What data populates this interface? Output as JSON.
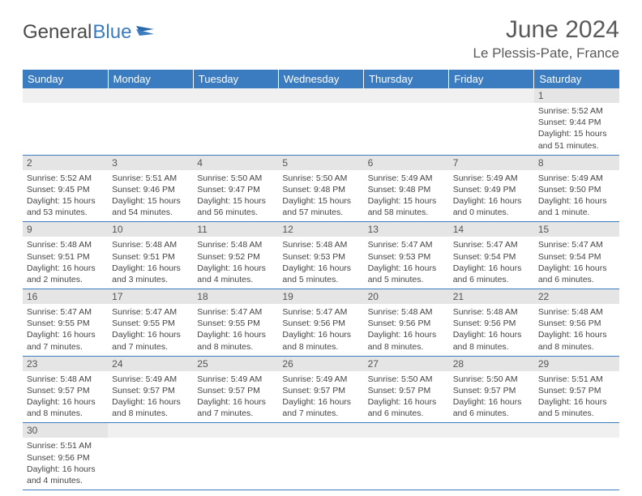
{
  "logo": {
    "text1": "General",
    "text2": "Blue"
  },
  "title": "June 2024",
  "location": "Le Plessis-Pate, France",
  "header_bg": "#3b7bbf",
  "daynum_bg": "#e5e5e5",
  "border_color": "#3b7bbf",
  "day_names": [
    "Sunday",
    "Monday",
    "Tuesday",
    "Wednesday",
    "Thursday",
    "Friday",
    "Saturday"
  ],
  "weeks": [
    [
      null,
      null,
      null,
      null,
      null,
      null,
      {
        "n": "1",
        "sunrise": "5:52 AM",
        "sunset": "9:44 PM",
        "daylight": "15 hours and 51 minutes."
      }
    ],
    [
      {
        "n": "2",
        "sunrise": "5:52 AM",
        "sunset": "9:45 PM",
        "daylight": "15 hours and 53 minutes."
      },
      {
        "n": "3",
        "sunrise": "5:51 AM",
        "sunset": "9:46 PM",
        "daylight": "15 hours and 54 minutes."
      },
      {
        "n": "4",
        "sunrise": "5:50 AM",
        "sunset": "9:47 PM",
        "daylight": "15 hours and 56 minutes."
      },
      {
        "n": "5",
        "sunrise": "5:50 AM",
        "sunset": "9:48 PM",
        "daylight": "15 hours and 57 minutes."
      },
      {
        "n": "6",
        "sunrise": "5:49 AM",
        "sunset": "9:48 PM",
        "daylight": "15 hours and 58 minutes."
      },
      {
        "n": "7",
        "sunrise": "5:49 AM",
        "sunset": "9:49 PM",
        "daylight": "16 hours and 0 minutes."
      },
      {
        "n": "8",
        "sunrise": "5:49 AM",
        "sunset": "9:50 PM",
        "daylight": "16 hours and 1 minute."
      }
    ],
    [
      {
        "n": "9",
        "sunrise": "5:48 AM",
        "sunset": "9:51 PM",
        "daylight": "16 hours and 2 minutes."
      },
      {
        "n": "10",
        "sunrise": "5:48 AM",
        "sunset": "9:51 PM",
        "daylight": "16 hours and 3 minutes."
      },
      {
        "n": "11",
        "sunrise": "5:48 AM",
        "sunset": "9:52 PM",
        "daylight": "16 hours and 4 minutes."
      },
      {
        "n": "12",
        "sunrise": "5:48 AM",
        "sunset": "9:53 PM",
        "daylight": "16 hours and 5 minutes."
      },
      {
        "n": "13",
        "sunrise": "5:47 AM",
        "sunset": "9:53 PM",
        "daylight": "16 hours and 5 minutes."
      },
      {
        "n": "14",
        "sunrise": "5:47 AM",
        "sunset": "9:54 PM",
        "daylight": "16 hours and 6 minutes."
      },
      {
        "n": "15",
        "sunrise": "5:47 AM",
        "sunset": "9:54 PM",
        "daylight": "16 hours and 6 minutes."
      }
    ],
    [
      {
        "n": "16",
        "sunrise": "5:47 AM",
        "sunset": "9:55 PM",
        "daylight": "16 hours and 7 minutes."
      },
      {
        "n": "17",
        "sunrise": "5:47 AM",
        "sunset": "9:55 PM",
        "daylight": "16 hours and 7 minutes."
      },
      {
        "n": "18",
        "sunrise": "5:47 AM",
        "sunset": "9:55 PM",
        "daylight": "16 hours and 8 minutes."
      },
      {
        "n": "19",
        "sunrise": "5:47 AM",
        "sunset": "9:56 PM",
        "daylight": "16 hours and 8 minutes."
      },
      {
        "n": "20",
        "sunrise": "5:48 AM",
        "sunset": "9:56 PM",
        "daylight": "16 hours and 8 minutes."
      },
      {
        "n": "21",
        "sunrise": "5:48 AM",
        "sunset": "9:56 PM",
        "daylight": "16 hours and 8 minutes."
      },
      {
        "n": "22",
        "sunrise": "5:48 AM",
        "sunset": "9:56 PM",
        "daylight": "16 hours and 8 minutes."
      }
    ],
    [
      {
        "n": "23",
        "sunrise": "5:48 AM",
        "sunset": "9:57 PM",
        "daylight": "16 hours and 8 minutes."
      },
      {
        "n": "24",
        "sunrise": "5:49 AM",
        "sunset": "9:57 PM",
        "daylight": "16 hours and 8 minutes."
      },
      {
        "n": "25",
        "sunrise": "5:49 AM",
        "sunset": "9:57 PM",
        "daylight": "16 hours and 7 minutes."
      },
      {
        "n": "26",
        "sunrise": "5:49 AM",
        "sunset": "9:57 PM",
        "daylight": "16 hours and 7 minutes."
      },
      {
        "n": "27",
        "sunrise": "5:50 AM",
        "sunset": "9:57 PM",
        "daylight": "16 hours and 6 minutes."
      },
      {
        "n": "28",
        "sunrise": "5:50 AM",
        "sunset": "9:57 PM",
        "daylight": "16 hours and 6 minutes."
      },
      {
        "n": "29",
        "sunrise": "5:51 AM",
        "sunset": "9:57 PM",
        "daylight": "16 hours and 5 minutes."
      }
    ],
    [
      {
        "n": "30",
        "sunrise": "5:51 AM",
        "sunset": "9:56 PM",
        "daylight": "16 hours and 4 minutes."
      },
      null,
      null,
      null,
      null,
      null,
      null
    ]
  ]
}
